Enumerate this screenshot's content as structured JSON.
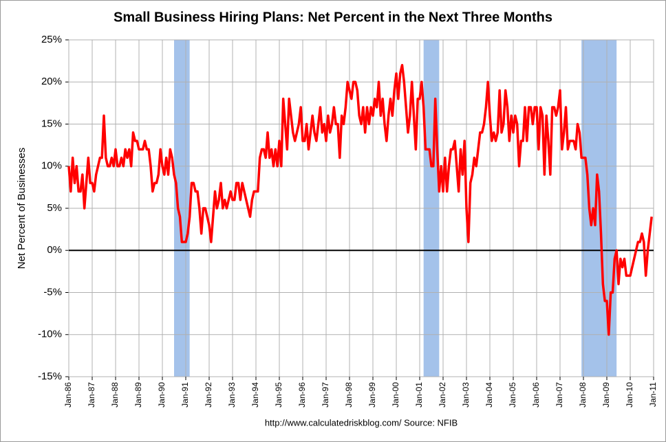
{
  "chart_data": {
    "type": "line",
    "title": "Small Business Hiring Plans: Net Percent in the Next Three Months",
    "y_label": "Net Percent of Businesses",
    "footnote": "http://www.calculatedriskblog.com/  Source: NFIB",
    "categories": [
      "Jan-86",
      null,
      null,
      null,
      null,
      null,
      null,
      null,
      null,
      null,
      null,
      null,
      "Jan-87",
      null,
      null,
      null,
      null,
      null,
      null,
      null,
      null,
      null,
      null,
      null,
      "Jan-88",
      null,
      null,
      null,
      null,
      null,
      null,
      null,
      null,
      null,
      null,
      null,
      "Jan-89",
      null,
      null,
      null,
      null,
      null,
      null,
      null,
      null,
      null,
      null,
      null,
      "Jan-90",
      null,
      null,
      null,
      null,
      null,
      null,
      null,
      null,
      null,
      null,
      null,
      "Jan-91",
      null,
      null,
      null,
      null,
      null,
      null,
      null,
      null,
      null,
      null,
      null,
      "Jan-92",
      null,
      null,
      null,
      null,
      null,
      null,
      null,
      null,
      null,
      null,
      null,
      "Jan-93",
      null,
      null,
      null,
      null,
      null,
      null,
      null,
      null,
      null,
      null,
      null,
      "Jan-94",
      null,
      null,
      null,
      null,
      null,
      null,
      null,
      null,
      null,
      null,
      null,
      "Jan-95",
      null,
      null,
      null,
      null,
      null,
      null,
      null,
      null,
      null,
      null,
      null,
      "Jan-96",
      null,
      null,
      null,
      null,
      null,
      null,
      null,
      null,
      null,
      null,
      null,
      "Jan-97",
      null,
      null,
      null,
      null,
      null,
      null,
      null,
      null,
      null,
      null,
      null,
      "Jan-98",
      null,
      null,
      null,
      null,
      null,
      null,
      null,
      null,
      null,
      null,
      null,
      "Jan-99",
      null,
      null,
      null,
      null,
      null,
      null,
      null,
      null,
      null,
      null,
      null,
      "Jan-00",
      null,
      null,
      null,
      null,
      null,
      null,
      null,
      null,
      null,
      null,
      null,
      "Jan-01",
      null,
      null,
      null,
      null,
      null,
      null,
      null,
      null,
      null,
      null,
      null,
      "Jan-02",
      null,
      null,
      null,
      null,
      null,
      null,
      null,
      null,
      null,
      null,
      null,
      "Jan-03",
      null,
      null,
      null,
      null,
      null,
      null,
      null,
      null,
      null,
      null,
      null,
      "Jan-04",
      null,
      null,
      null,
      null,
      null,
      null,
      null,
      null,
      null,
      null,
      null,
      "Jan-05",
      null,
      null,
      null,
      null,
      null,
      null,
      null,
      null,
      null,
      null,
      null,
      "Jan-06",
      null,
      null,
      null,
      null,
      null,
      null,
      null,
      null,
      null,
      null,
      null,
      "Jan-07",
      null,
      null,
      null,
      null,
      null,
      null,
      null,
      null,
      null,
      null,
      null,
      "Jan-08",
      null,
      null,
      null,
      null,
      null,
      null,
      null,
      null,
      null,
      null,
      null,
      "Jan-09",
      null,
      null,
      null,
      null,
      null,
      null,
      null,
      null,
      null,
      null,
      null,
      "Jan-10",
      null,
      null,
      null,
      null,
      null,
      null,
      null,
      null,
      null,
      null,
      null,
      "Jan-11"
    ],
    "series": [
      {
        "name": "Net Percent",
        "color": "#ff0000",
        "values": [
          10,
          7,
          11,
          8,
          10,
          7,
          7,
          9,
          5,
          8,
          11,
          8,
          8,
          7,
          9,
          10,
          11,
          11,
          16,
          11,
          10,
          10,
          11,
          10,
          12,
          10,
          10,
          11,
          10,
          12,
          11,
          12,
          10,
          14,
          13,
          13,
          12,
          12,
          12,
          13,
          12,
          12,
          10,
          7,
          8,
          8,
          9,
          12,
          10,
          9,
          11,
          9,
          12,
          11,
          9,
          8,
          5,
          4,
          1,
          1,
          1,
          2,
          4,
          8,
          8,
          7,
          7,
          5,
          2,
          5,
          5,
          4,
          3,
          1,
          4,
          7,
          5,
          6,
          8,
          5,
          6,
          5,
          6,
          7,
          6,
          6,
          8,
          8,
          6,
          8,
          7,
          6,
          5,
          4,
          6,
          7,
          7,
          7,
          11,
          12,
          12,
          11,
          14,
          11,
          12,
          10,
          12,
          10,
          13,
          10,
          18,
          15,
          12,
          18,
          16,
          14,
          13,
          14,
          15,
          17,
          13,
          13,
          15,
          12,
          14,
          16,
          14,
          13,
          15,
          17,
          14,
          15,
          13,
          16,
          14,
          15,
          17,
          15,
          15,
          11,
          16,
          15,
          17,
          20,
          19,
          18,
          20,
          20,
          19,
          16,
          15,
          17,
          14,
          17,
          15,
          17,
          16,
          18,
          17,
          20,
          16,
          18,
          15,
          13,
          16,
          18,
          16,
          19,
          21,
          18,
          21,
          22,
          20,
          17,
          14,
          16,
          20,
          16,
          12,
          18,
          18,
          20,
          17,
          12,
          12,
          12,
          10,
          10,
          18,
          12,
          7,
          10,
          7,
          11,
          7,
          10,
          12,
          12,
          13,
          10,
          7,
          12,
          9,
          13,
          5,
          1,
          8,
          9,
          11,
          10,
          12,
          14,
          14,
          15,
          17,
          20,
          16,
          13,
          14,
          13,
          14,
          19,
          14,
          15,
          19,
          17,
          13,
          16,
          14,
          16,
          15,
          10,
          13,
          13,
          17,
          13,
          17,
          17,
          15,
          17,
          17,
          12,
          17,
          16,
          9,
          16,
          13,
          9,
          17,
          17,
          16,
          17,
          19,
          12,
          14,
          17,
          12,
          13,
          13,
          13,
          12,
          15,
          14,
          11,
          11,
          11,
          9,
          5,
          3,
          5,
          3,
          9,
          7,
          2,
          -4,
          -6,
          -6,
          -10,
          -5,
          -5,
          -1,
          0,
          -4,
          -1,
          -2,
          -1,
          -3,
          -3,
          -3,
          -2,
          -1,
          0,
          1,
          1,
          2,
          1,
          -3,
          0,
          2,
          4,
          null
        ]
      }
    ],
    "recessions": [
      [
        "1990-07",
        "1991-03"
      ],
      [
        "2001-03",
        "2001-11"
      ],
      [
        "2007-12",
        "2009-06"
      ]
    ],
    "recession_color": "#a4c2ea",
    "ylim": [
      -15,
      25
    ],
    "yticks": [
      {
        "value": -15,
        "label": "-15%"
      },
      {
        "value": -10,
        "label": "-10%"
      },
      {
        "value": -5,
        "label": "-5%"
      },
      {
        "value": 0,
        "label": "0%"
      },
      {
        "value": 5,
        "label": "5%"
      },
      {
        "value": 10,
        "label": "10%"
      },
      {
        "value": 15,
        "label": "15%"
      },
      {
        "value": 20,
        "label": "20%"
      },
      {
        "value": 25,
        "label": "25%"
      }
    ],
    "grid": true
  }
}
